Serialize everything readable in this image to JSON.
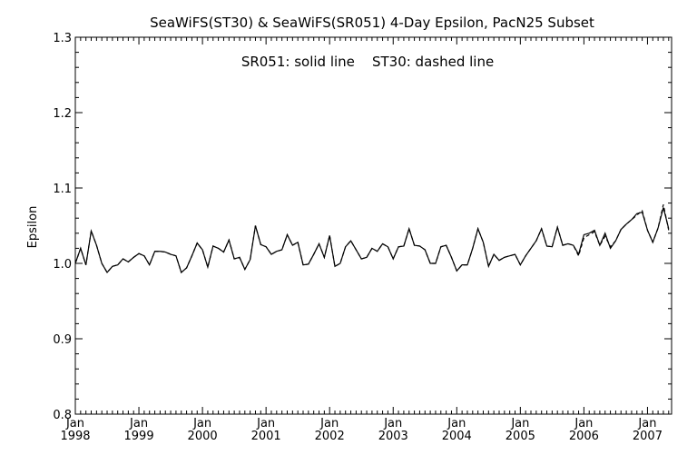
{
  "chart_data": {
    "type": "line",
    "title": "SeaWiFS(ST30) & SeaWiFS(SR051) 4-Day Epsilon, PacN25 Subset",
    "annotation": "SR051: solid line    ST30: dashed line",
    "xlabel": "",
    "ylabel": "Epsilon",
    "xlim": [
      "1998-01",
      "2007-05"
    ],
    "ylim": [
      0.8,
      1.3
    ],
    "yticks": [
      "0.8",
      "0.9",
      "1.0",
      "1.1",
      "1.2",
      "1.3"
    ],
    "xticks": [
      {
        "month": "Jan",
        "year": "1998",
        "date": "1998-01"
      },
      {
        "month": "Jan",
        "year": "1999",
        "date": "1999-01"
      },
      {
        "month": "Jan",
        "year": "2000",
        "date": "2000-01"
      },
      {
        "month": "Jan",
        "year": "2001",
        "date": "2001-01"
      },
      {
        "month": "Jan",
        "year": "2002",
        "date": "2002-01"
      },
      {
        "month": "Jan",
        "year": "2003",
        "date": "2003-01"
      },
      {
        "month": "Jan",
        "year": "2004",
        "date": "2004-01"
      },
      {
        "month": "Jan",
        "year": "2005",
        "date": "2005-01"
      },
      {
        "month": "Jan",
        "year": "2006",
        "date": "2006-01"
      },
      {
        "month": "Jan",
        "year": "2007",
        "date": "2007-01"
      }
    ],
    "grid": false,
    "legend": "none",
    "series": [
      {
        "name": "SR051",
        "style": "solid",
        "color": "#000000",
        "points": [
          [
            "1998-01",
            1.0
          ],
          [
            "1998-02",
            1.02
          ],
          [
            "1998-03",
            0.998
          ],
          [
            "1998-04",
            1.043
          ],
          [
            "1998-05",
            1.024
          ],
          [
            "1998-06",
            1.0
          ],
          [
            "1998-07",
            0.988
          ],
          [
            "1998-08",
            0.996
          ],
          [
            "1998-09",
            0.998
          ],
          [
            "1998-10",
            1.006
          ],
          [
            "1998-11",
            1.002
          ],
          [
            "1998-12",
            1.008
          ],
          [
            "1999-01",
            1.013
          ],
          [
            "1999-02",
            1.01
          ],
          [
            "1999-03",
            0.998
          ],
          [
            "1999-04",
            1.016
          ],
          [
            "1999-05",
            1.016
          ],
          [
            "1999-06",
            1.015
          ],
          [
            "1999-07",
            1.012
          ],
          [
            "1999-08",
            1.01
          ],
          [
            "1999-09",
            0.988
          ],
          [
            "1999-10",
            0.994
          ],
          [
            "1999-11",
            1.01
          ],
          [
            "1999-12",
            1.027
          ],
          [
            "2000-01",
            1.018
          ],
          [
            "2000-02",
            0.995
          ],
          [
            "2000-03",
            1.023
          ],
          [
            "2000-04",
            1.02
          ],
          [
            "2000-05",
            1.015
          ],
          [
            "2000-06",
            1.031
          ],
          [
            "2000-07",
            1.006
          ],
          [
            "2000-08",
            1.008
          ],
          [
            "2000-09",
            0.992
          ],
          [
            "2000-10",
            1.005
          ],
          [
            "2000-11",
            1.05
          ],
          [
            "2000-12",
            1.025
          ],
          [
            "2001-01",
            1.022
          ],
          [
            "2001-02",
            1.012
          ],
          [
            "2001-03",
            1.016
          ],
          [
            "2001-04",
            1.018
          ],
          [
            "2001-05",
            1.038
          ],
          [
            "2001-06",
            1.024
          ],
          [
            "2001-07",
            1.028
          ],
          [
            "2001-08",
            0.998
          ],
          [
            "2001-09",
            0.999
          ],
          [
            "2001-10",
            1.012
          ],
          [
            "2001-11",
            1.026
          ],
          [
            "2001-12",
            1.008
          ],
          [
            "2002-01",
            1.037
          ],
          [
            "2002-02",
            0.996
          ],
          [
            "2002-03",
            1.0
          ],
          [
            "2002-04",
            1.022
          ],
          [
            "2002-05",
            1.03
          ],
          [
            "2002-06",
            1.018
          ],
          [
            "2002-07",
            1.006
          ],
          [
            "2002-08",
            1.008
          ],
          [
            "2002-09",
            1.02
          ],
          [
            "2002-10",
            1.016
          ],
          [
            "2002-11",
            1.026
          ],
          [
            "2002-12",
            1.022
          ],
          [
            "2003-01",
            1.006
          ],
          [
            "2003-02",
            1.022
          ],
          [
            "2003-03",
            1.023
          ],
          [
            "2003-04",
            1.046
          ],
          [
            "2003-05",
            1.024
          ],
          [
            "2003-06",
            1.023
          ],
          [
            "2003-07",
            1.018
          ],
          [
            "2003-08",
            1.0
          ],
          [
            "2003-09",
            1.0
          ],
          [
            "2003-10",
            1.022
          ],
          [
            "2003-11",
            1.024
          ],
          [
            "2003-12",
            1.008
          ],
          [
            "2004-01",
            0.99
          ],
          [
            "2004-02",
            0.998
          ],
          [
            "2004-03",
            0.998
          ],
          [
            "2004-04",
            1.02
          ],
          [
            "2004-05",
            1.046
          ],
          [
            "2004-06",
            1.028
          ],
          [
            "2004-07",
            0.996
          ],
          [
            "2004-08",
            1.012
          ],
          [
            "2004-09",
            1.004
          ],
          [
            "2004-10",
            1.008
          ],
          [
            "2004-11",
            1.01
          ],
          [
            "2004-12",
            1.012
          ],
          [
            "2005-01",
            0.998
          ],
          [
            "2005-02",
            1.01
          ],
          [
            "2005-03",
            1.02
          ],
          [
            "2005-04",
            1.03
          ],
          [
            "2005-05",
            1.046
          ],
          [
            "2005-06",
            1.023
          ],
          [
            "2005-07",
            1.022
          ],
          [
            "2005-08",
            1.048
          ],
          [
            "2005-09",
            1.024
          ],
          [
            "2005-10",
            1.026
          ],
          [
            "2005-11",
            1.024
          ],
          [
            "2005-12",
            1.012
          ],
          [
            "2006-01",
            1.038
          ],
          [
            "2006-02",
            1.04
          ],
          [
            "2006-03",
            1.044
          ],
          [
            "2006-04",
            1.024
          ],
          [
            "2006-05",
            1.04
          ],
          [
            "2006-06",
            1.02
          ],
          [
            "2006-07",
            1.03
          ],
          [
            "2006-08",
            1.045
          ],
          [
            "2006-09",
            1.052
          ],
          [
            "2006-10",
            1.058
          ],
          [
            "2006-11",
            1.066
          ],
          [
            "2006-12",
            1.068
          ],
          [
            "2007-01",
            1.044
          ],
          [
            "2007-02",
            1.028
          ],
          [
            "2007-03",
            1.047
          ],
          [
            "2007-04",
            1.074
          ],
          [
            "2007-05",
            1.046
          ]
        ]
      },
      {
        "name": "ST30",
        "style": "dashed",
        "color": "#000000",
        "points": [
          [
            "1998-01",
            1.0
          ],
          [
            "1998-02",
            1.02
          ],
          [
            "1998-03",
            0.998
          ],
          [
            "1998-04",
            1.043
          ],
          [
            "1998-05",
            1.024
          ],
          [
            "1998-06",
            1.0
          ],
          [
            "1998-07",
            0.988
          ],
          [
            "1998-08",
            0.996
          ],
          [
            "1998-09",
            0.998
          ],
          [
            "1998-10",
            1.006
          ],
          [
            "1998-11",
            1.002
          ],
          [
            "1998-12",
            1.008
          ],
          [
            "1999-01",
            1.013
          ],
          [
            "1999-02",
            1.01
          ],
          [
            "1999-03",
            0.998
          ],
          [
            "1999-04",
            1.016
          ],
          [
            "1999-05",
            1.016
          ],
          [
            "1999-06",
            1.015
          ],
          [
            "1999-07",
            1.012
          ],
          [
            "1999-08",
            1.01
          ],
          [
            "1999-09",
            0.988
          ],
          [
            "1999-10",
            0.994
          ],
          [
            "1999-11",
            1.01
          ],
          [
            "1999-12",
            1.027
          ],
          [
            "2000-01",
            1.018
          ],
          [
            "2000-02",
            0.995
          ],
          [
            "2000-03",
            1.023
          ],
          [
            "2000-04",
            1.02
          ],
          [
            "2000-05",
            1.015
          ],
          [
            "2000-06",
            1.031
          ],
          [
            "2000-07",
            1.006
          ],
          [
            "2000-08",
            1.008
          ],
          [
            "2000-09",
            0.992
          ],
          [
            "2000-10",
            1.005
          ],
          [
            "2000-11",
            1.05
          ],
          [
            "2000-12",
            1.025
          ],
          [
            "2001-01",
            1.022
          ],
          [
            "2001-02",
            1.012
          ],
          [
            "2001-03",
            1.016
          ],
          [
            "2001-04",
            1.018
          ],
          [
            "2001-05",
            1.038
          ],
          [
            "2001-06",
            1.024
          ],
          [
            "2001-07",
            1.028
          ],
          [
            "2001-08",
            0.998
          ],
          [
            "2001-09",
            0.999
          ],
          [
            "2001-10",
            1.012
          ],
          [
            "2001-11",
            1.026
          ],
          [
            "2001-12",
            1.008
          ],
          [
            "2002-01",
            1.037
          ],
          [
            "2002-02",
            0.996
          ],
          [
            "2002-03",
            1.0
          ],
          [
            "2002-04",
            1.022
          ],
          [
            "2002-05",
            1.03
          ],
          [
            "2002-06",
            1.018
          ],
          [
            "2002-07",
            1.006
          ],
          [
            "2002-08",
            1.008
          ],
          [
            "2002-09",
            1.02
          ],
          [
            "2002-10",
            1.016
          ],
          [
            "2002-11",
            1.026
          ],
          [
            "2002-12",
            1.022
          ],
          [
            "2003-01",
            1.006
          ],
          [
            "2003-02",
            1.022
          ],
          [
            "2003-03",
            1.023
          ],
          [
            "2003-04",
            1.046
          ],
          [
            "2003-05",
            1.024
          ],
          [
            "2003-06",
            1.023
          ],
          [
            "2003-07",
            1.018
          ],
          [
            "2003-08",
            1.0
          ],
          [
            "2003-09",
            1.0
          ],
          [
            "2003-10",
            1.022
          ],
          [
            "2003-11",
            1.024
          ],
          [
            "2003-12",
            1.008
          ],
          [
            "2004-01",
            0.99
          ],
          [
            "2004-02",
            0.998
          ],
          [
            "2004-03",
            0.998
          ],
          [
            "2004-04",
            1.02
          ],
          [
            "2004-05",
            1.046
          ],
          [
            "2004-06",
            1.028
          ],
          [
            "2004-07",
            0.996
          ],
          [
            "2004-08",
            1.012
          ],
          [
            "2004-09",
            1.004
          ],
          [
            "2004-10",
            1.008
          ],
          [
            "2004-11",
            1.01
          ],
          [
            "2004-12",
            1.012
          ],
          [
            "2005-01",
            0.998
          ],
          [
            "2005-02",
            1.01
          ],
          [
            "2005-03",
            1.02
          ],
          [
            "2005-04",
            1.03
          ],
          [
            "2005-05",
            1.046
          ],
          [
            "2005-06",
            1.023
          ],
          [
            "2005-07",
            1.022
          ],
          [
            "2005-08",
            1.048
          ],
          [
            "2005-09",
            1.024
          ],
          [
            "2005-10",
            1.026
          ],
          [
            "2005-11",
            1.024
          ],
          [
            "2005-12",
            1.01
          ],
          [
            "2006-01",
            1.034
          ],
          [
            "2006-02",
            1.038
          ],
          [
            "2006-03",
            1.042
          ],
          [
            "2006-04",
            1.024
          ],
          [
            "2006-05",
            1.036
          ],
          [
            "2006-06",
            1.022
          ],
          [
            "2006-07",
            1.03
          ],
          [
            "2006-08",
            1.045
          ],
          [
            "2006-09",
            1.052
          ],
          [
            "2006-10",
            1.058
          ],
          [
            "2006-11",
            1.064
          ],
          [
            "2006-12",
            1.07
          ],
          [
            "2007-01",
            1.044
          ],
          [
            "2007-02",
            1.028
          ],
          [
            "2007-03",
            1.047
          ],
          [
            "2007-04",
            1.078
          ],
          [
            "2007-05",
            1.044
          ]
        ]
      }
    ]
  }
}
